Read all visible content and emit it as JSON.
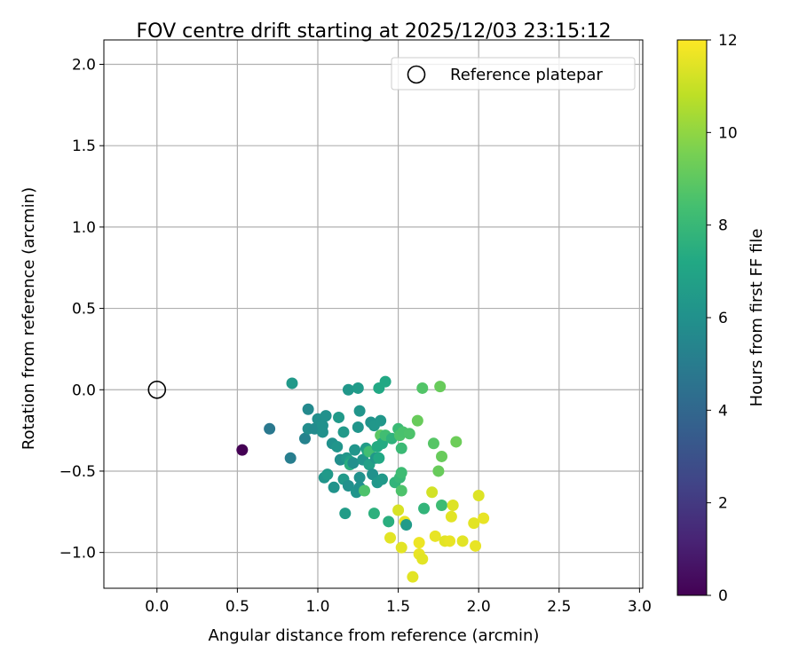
{
  "chart_data": {
    "type": "scatter",
    "title": "FOV centre drift starting at 2025/12/03 23:15:12",
    "xlabel": "Angular distance from reference (arcmin)",
    "ylabel": "Rotation from reference (arcmin)",
    "xlim": [
      -0.33,
      3.02
    ],
    "ylim": [
      -1.22,
      2.15
    ],
    "xticks": [
      0.0,
      0.5,
      1.0,
      1.5,
      2.0,
      2.5,
      3.0
    ],
    "xtick_labels": [
      "0.0",
      "0.5",
      "1.0",
      "1.5",
      "2.0",
      "2.5",
      "3.0"
    ],
    "yticks": [
      -1.0,
      -0.5,
      0.0,
      0.5,
      1.0,
      1.5,
      2.0
    ],
    "ytick_labels": [
      "−1.0",
      "−0.5",
      "0.0",
      "0.5",
      "1.0",
      "1.5",
      "2.0"
    ],
    "grid": true,
    "legend": {
      "position": "top-right",
      "label": "Reference platepar"
    },
    "reference_point": {
      "x": 0.0,
      "y": 0.0
    },
    "colorbar": {
      "label": "Hours from first FF file",
      "min": 0,
      "max": 12,
      "ticks": [
        0,
        2,
        4,
        6,
        8,
        10,
        12
      ],
      "tick_labels": [
        "0",
        "2",
        "4",
        "6",
        "8",
        "10",
        "12"
      ],
      "colormap": "viridis"
    },
    "points": [
      {
        "x": 0.53,
        "y": -0.37,
        "h": 0.0
      },
      {
        "x": 0.7,
        "y": -0.24,
        "h": 4.8
      },
      {
        "x": 0.83,
        "y": -0.42,
        "h": 5.1
      },
      {
        "x": 0.92,
        "y": -0.3,
        "h": 5.3
      },
      {
        "x": 0.94,
        "y": -0.12,
        "h": 5.6
      },
      {
        "x": 0.94,
        "y": -0.24,
        "h": 5.8
      },
      {
        "x": 0.84,
        "y": 0.04,
        "h": 6.4
      },
      {
        "x": 0.98,
        "y": -0.24,
        "h": 5.7
      },
      {
        "x": 1.0,
        "y": -0.18,
        "h": 5.9
      },
      {
        "x": 1.03,
        "y": -0.22,
        "h": 6.0
      },
      {
        "x": 1.03,
        "y": -0.26,
        "h": 6.0
      },
      {
        "x": 1.05,
        "y": -0.16,
        "h": 6.0
      },
      {
        "x": 1.04,
        "y": -0.54,
        "h": 6.2
      },
      {
        "x": 1.06,
        "y": -0.52,
        "h": 6.4
      },
      {
        "x": 1.09,
        "y": -0.33,
        "h": 6.0
      },
      {
        "x": 1.1,
        "y": -0.6,
        "h": 6.1
      },
      {
        "x": 1.12,
        "y": -0.35,
        "h": 6.2
      },
      {
        "x": 1.13,
        "y": -0.17,
        "h": 6.4
      },
      {
        "x": 1.14,
        "y": -0.43,
        "h": 5.9
      },
      {
        "x": 1.16,
        "y": -0.26,
        "h": 6.4
      },
      {
        "x": 1.16,
        "y": -0.55,
        "h": 6.4
      },
      {
        "x": 1.17,
        "y": -0.76,
        "h": 6.6
      },
      {
        "x": 1.18,
        "y": -0.42,
        "h": 6.3
      },
      {
        "x": 1.19,
        "y": -0.59,
        "h": 6.0
      },
      {
        "x": 1.19,
        "y": 0.0,
        "h": 6.3
      },
      {
        "x": 1.2,
        "y": -0.44,
        "h": 6.8
      },
      {
        "x": 1.2,
        "y": -0.46,
        "h": 7.5
      },
      {
        "x": 1.22,
        "y": -0.45,
        "h": 5.9
      },
      {
        "x": 1.23,
        "y": -0.37,
        "h": 6.2
      },
      {
        "x": 1.24,
        "y": -0.63,
        "h": 6.2
      },
      {
        "x": 1.25,
        "y": -0.23,
        "h": 6.2
      },
      {
        "x": 1.25,
        "y": 0.01,
        "h": 6.5
      },
      {
        "x": 1.26,
        "y": -0.54,
        "h": 6.0
      },
      {
        "x": 1.26,
        "y": -0.13,
        "h": 6.2
      },
      {
        "x": 1.26,
        "y": -0.6,
        "h": 6.0
      },
      {
        "x": 1.28,
        "y": -0.43,
        "h": 6.2
      },
      {
        "x": 1.29,
        "y": -0.62,
        "h": 8.6
      },
      {
        "x": 1.3,
        "y": -0.36,
        "h": 6.6
      },
      {
        "x": 1.31,
        "y": -0.38,
        "h": 7.0
      },
      {
        "x": 1.32,
        "y": -0.46,
        "h": 6.8
      },
      {
        "x": 1.32,
        "y": -0.38,
        "h": 8.3
      },
      {
        "x": 1.33,
        "y": -0.2,
        "h": 6.1
      },
      {
        "x": 1.34,
        "y": -0.52,
        "h": 6.0
      },
      {
        "x": 1.35,
        "y": -0.76,
        "h": 7.6
      },
      {
        "x": 1.35,
        "y": -0.22,
        "h": 6.3
      },
      {
        "x": 1.36,
        "y": -0.42,
        "h": 6.3
      },
      {
        "x": 1.37,
        "y": -0.57,
        "h": 6.3
      },
      {
        "x": 1.37,
        "y": -0.35,
        "h": 7.3
      },
      {
        "x": 1.38,
        "y": 0.01,
        "h": 7.2
      },
      {
        "x": 1.38,
        "y": -0.42,
        "h": 7.2
      },
      {
        "x": 1.39,
        "y": -0.19,
        "h": 6.3
      },
      {
        "x": 1.39,
        "y": -0.28,
        "h": 8.9
      },
      {
        "x": 1.4,
        "y": -0.33,
        "h": 7.3
      },
      {
        "x": 1.4,
        "y": -0.55,
        "h": 6.4
      },
      {
        "x": 1.42,
        "y": 0.05,
        "h": 7.2
      },
      {
        "x": 1.42,
        "y": -0.28,
        "h": 8.3
      },
      {
        "x": 1.44,
        "y": -0.81,
        "h": 7.5
      },
      {
        "x": 1.45,
        "y": -0.91,
        "h": 11.5
      },
      {
        "x": 1.46,
        "y": -0.3,
        "h": 7.7
      },
      {
        "x": 1.48,
        "y": -0.57,
        "h": 7.8
      },
      {
        "x": 1.5,
        "y": -0.74,
        "h": 11.3
      },
      {
        "x": 1.5,
        "y": -0.24,
        "h": 8.1
      },
      {
        "x": 1.51,
        "y": -0.54,
        "h": 8.0
      },
      {
        "x": 1.51,
        "y": -0.28,
        "h": 8.6
      },
      {
        "x": 1.52,
        "y": -0.51,
        "h": 8.2
      },
      {
        "x": 1.52,
        "y": -0.36,
        "h": 8.1
      },
      {
        "x": 1.52,
        "y": -0.97,
        "h": 11.5
      },
      {
        "x": 1.52,
        "y": -0.62,
        "h": 8.6
      },
      {
        "x": 1.53,
        "y": -0.26,
        "h": 8.5
      },
      {
        "x": 1.54,
        "y": -0.81,
        "h": 11.6
      },
      {
        "x": 1.55,
        "y": -0.83,
        "h": 6.5
      },
      {
        "x": 1.57,
        "y": -0.27,
        "h": 8.6
      },
      {
        "x": 1.59,
        "y": -1.15,
        "h": 11.5
      },
      {
        "x": 1.62,
        "y": -0.19,
        "h": 9.2
      },
      {
        "x": 1.63,
        "y": -1.01,
        "h": 11.6
      },
      {
        "x": 1.63,
        "y": -0.94,
        "h": 11.7
      },
      {
        "x": 1.65,
        "y": -1.04,
        "h": 11.5
      },
      {
        "x": 1.65,
        "y": 0.01,
        "h": 8.7
      },
      {
        "x": 1.66,
        "y": -0.73,
        "h": 7.8
      },
      {
        "x": 1.71,
        "y": -0.63,
        "h": 11.2
      },
      {
        "x": 1.72,
        "y": -0.33,
        "h": 8.8
      },
      {
        "x": 1.73,
        "y": -0.9,
        "h": 11.6
      },
      {
        "x": 1.75,
        "y": -0.5,
        "h": 9.2
      },
      {
        "x": 1.76,
        "y": 0.02,
        "h": 9.2
      },
      {
        "x": 1.77,
        "y": -0.41,
        "h": 9.2
      },
      {
        "x": 1.77,
        "y": -0.71,
        "h": 8.2
      },
      {
        "x": 1.79,
        "y": -0.93,
        "h": 11.5
      },
      {
        "x": 1.82,
        "y": -0.93,
        "h": 11.6
      },
      {
        "x": 1.83,
        "y": -0.78,
        "h": 11.5
      },
      {
        "x": 1.84,
        "y": -0.71,
        "h": 11.4
      },
      {
        "x": 1.86,
        "y": -0.32,
        "h": 9.3
      },
      {
        "x": 1.9,
        "y": -0.93,
        "h": 11.5
      },
      {
        "x": 1.97,
        "y": -0.82,
        "h": 11.5
      },
      {
        "x": 1.98,
        "y": -0.96,
        "h": 11.6
      },
      {
        "x": 2.0,
        "y": -0.65,
        "h": 11.4
      },
      {
        "x": 2.03,
        "y": -0.79,
        "h": 11.6
      }
    ]
  }
}
